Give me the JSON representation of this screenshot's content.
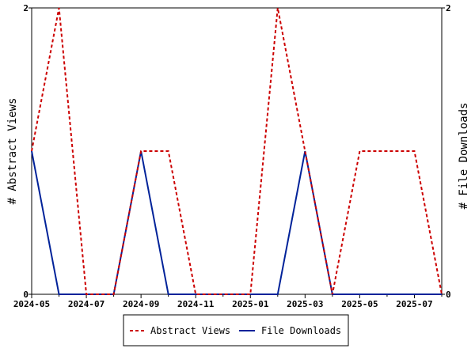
{
  "chart_data": {
    "type": "line",
    "x_dates": [
      "2024-05",
      "2024-06",
      "2024-07",
      "2024-08",
      "2024-09",
      "2024-10",
      "2024-11",
      "2024-12",
      "2025-01",
      "2025-02",
      "2025-03",
      "2025-04",
      "2025-05",
      "2025-06",
      "2025-07",
      "2025-08"
    ],
    "x_tick_labels": [
      "2024-05",
      "2024-07",
      "2024-09",
      "2024-11",
      "2025-01",
      "2025-03",
      "2025-05",
      "2025-07"
    ],
    "y_left": {
      "label": "# Abstract Views",
      "range": [
        0,
        2
      ],
      "ticks": [
        "0",
        "2"
      ]
    },
    "y_right": {
      "label": "# File Downloads",
      "range": [
        0,
        2
      ],
      "ticks": [
        "0",
        "2"
      ]
    },
    "series": [
      {
        "name": "Abstract Views",
        "axis": "left",
        "color": "#cc0000",
        "style": "dashed",
        "values": [
          1,
          2,
          0,
          0,
          1,
          1,
          0,
          0,
          0,
          2,
          1,
          0,
          1,
          1,
          1,
          0
        ]
      },
      {
        "name": "File Downloads",
        "axis": "right",
        "color": "#002299",
        "style": "solid",
        "values": [
          1,
          0,
          0,
          0,
          1,
          0,
          0,
          0,
          0,
          0,
          1,
          0,
          0,
          0,
          0,
          0
        ]
      }
    ],
    "legend": {
      "placement": "bottom-center",
      "entries": [
        "Abstract Views",
        "File Downloads"
      ]
    },
    "grid": false
  }
}
